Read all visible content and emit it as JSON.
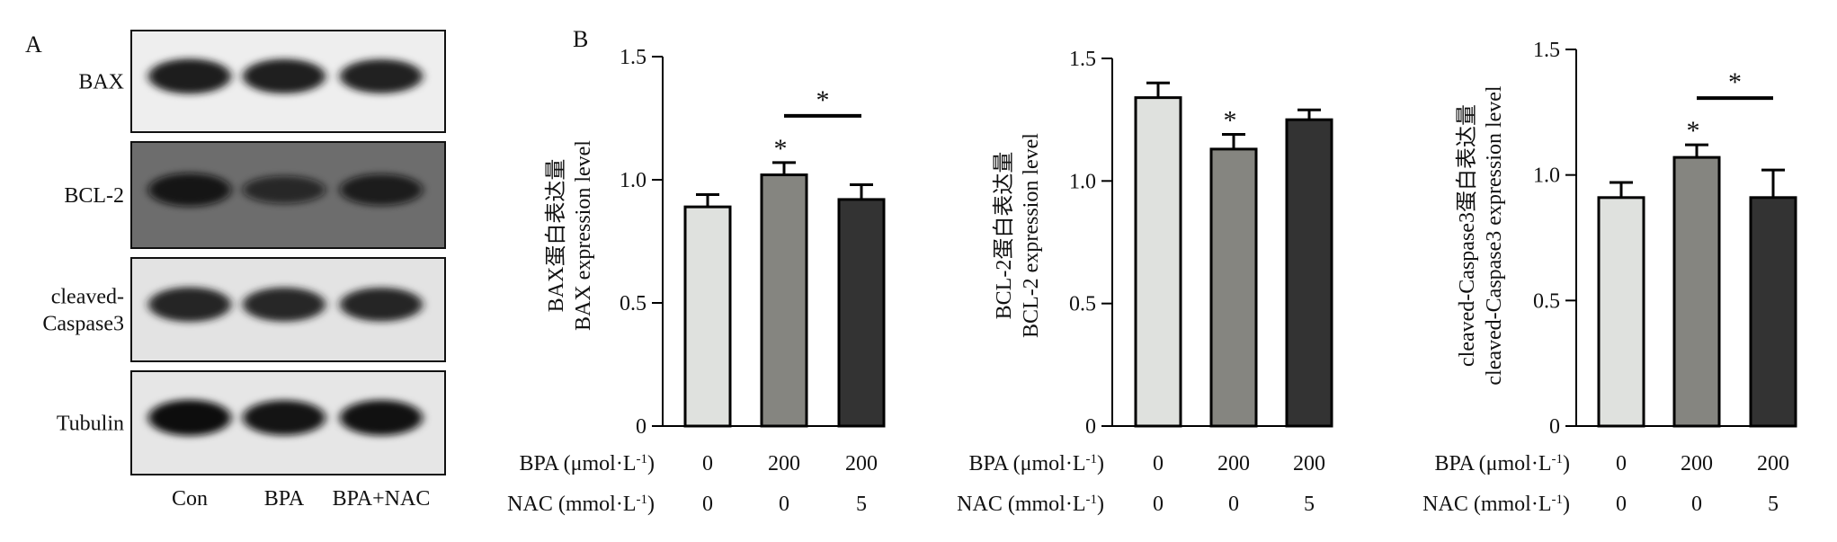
{
  "panel_a": {
    "letter": "A",
    "blots": [
      {
        "label": "BAX",
        "intensity": [
          0.95,
          0.92,
          0.9
        ]
      },
      {
        "label": "BCL-2",
        "intensity": [
          0.85,
          0.55,
          0.75
        ]
      },
      {
        "label": "cleaved-\nCaspase3",
        "intensity": [
          0.92,
          0.9,
          0.88
        ]
      },
      {
        "label": "Tubulin",
        "intensity": [
          1.0,
          0.95,
          0.97
        ]
      }
    ],
    "lanes": [
      "Con",
      "BPA",
      "BPA+NAC"
    ]
  },
  "panel_b_letter": "B",
  "conditions": {
    "bpa_label": "BPA (μmol·L",
    "nac_label": "NAC (mmol·L",
    "unit_sup": "-1",
    "label_close": ")",
    "bpa_values": [
      "0",
      "200",
      "200"
    ],
    "nac_values": [
      "0",
      "0",
      "5"
    ]
  },
  "colors": {
    "bar_light": "#dfe1de",
    "bar_mid": "#858580",
    "bar_dark": "#333333",
    "edge": "#000000"
  },
  "chart_data": [
    {
      "type": "bar",
      "ylabel_lines": [
        "BAX蛋白表达量",
        "BAX expression level"
      ],
      "ylim": [
        0,
        1.5
      ],
      "yticks": [
        "0",
        "0.5",
        "1.0",
        "1.5"
      ],
      "categories": [
        "Con",
        "BPA",
        "BPA+NAC"
      ],
      "values": [
        0.89,
        1.02,
        0.92
      ],
      "errors": [
        0.05,
        0.05,
        0.06
      ],
      "annotations": [
        {
          "type": "star",
          "bar": 1,
          "text": "*"
        },
        {
          "type": "bracket",
          "from": 1,
          "to": 2,
          "text": "*"
        }
      ]
    },
    {
      "type": "bar",
      "ylabel_lines": [
        "BCL-2蛋白表达量",
        "BCL-2 expression level"
      ],
      "ylim": [
        0,
        1.5
      ],
      "yticks": [
        "0",
        "0.5",
        "1.0",
        "1.5"
      ],
      "categories": [
        "Con",
        "BPA",
        "BPA+NAC"
      ],
      "values": [
        1.34,
        1.13,
        1.25
      ],
      "errors": [
        0.06,
        0.06,
        0.04
      ],
      "annotations": [
        {
          "type": "star",
          "bar": 1,
          "text": "*"
        }
      ]
    },
    {
      "type": "bar",
      "ylabel_lines": [
        "cleaved-Caspase3蛋白表达量",
        "cleaved-Caspase3 expression level"
      ],
      "ylim": [
        0,
        1.5
      ],
      "yticks": [
        "0",
        "0.5",
        "1.0",
        "1.5"
      ],
      "categories": [
        "Con",
        "BPA",
        "BPA+NAC"
      ],
      "values": [
        0.91,
        1.07,
        0.91
      ],
      "errors": [
        0.06,
        0.05,
        0.11
      ],
      "annotations": [
        {
          "type": "star",
          "bar": 1,
          "text": "*"
        },
        {
          "type": "bracket",
          "from": 1,
          "to": 2,
          "text": "*"
        }
      ]
    }
  ]
}
